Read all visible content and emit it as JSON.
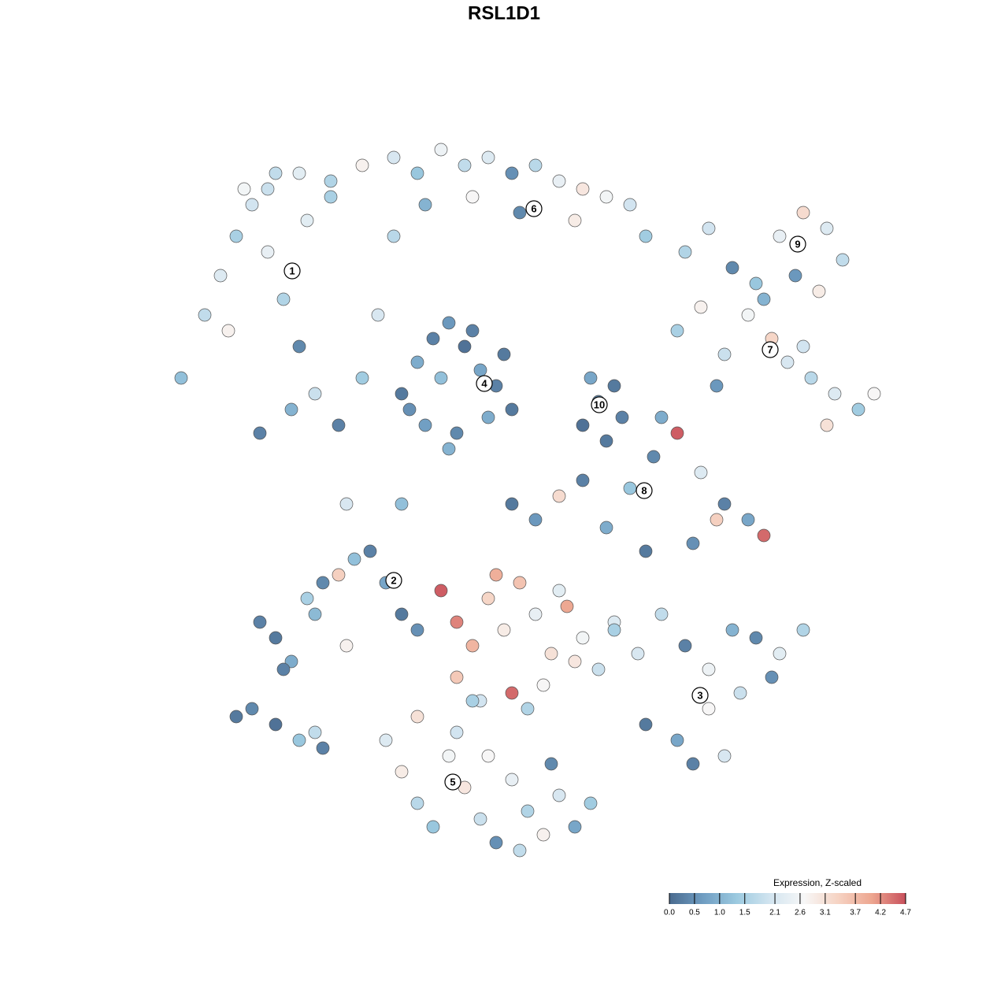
{
  "chart_data": {
    "type": "scatter",
    "title": "RSL1D1",
    "colorbar_title": "Expression, Z-scaled",
    "xlim": [
      0,
      100
    ],
    "ylim": [
      0,
      100
    ],
    "clim": [
      0,
      4.7
    ],
    "colormap": [
      "#4a6b8f",
      "#6f9dc2",
      "#9ccae0",
      "#d3e5f0",
      "#f7f7f7",
      "#f6d3c3",
      "#eda690",
      "#c8505c"
    ],
    "cticks": [
      {
        "value": 0,
        "label": "0.0"
      },
      0.5,
      {
        "value": 1,
        "label": "1.0"
      },
      1.5,
      2.1,
      2.6,
      3.1,
      3.7,
      4.2,
      4.7
    ],
    "x": [
      5,
      8,
      10,
      12,
      14,
      16,
      18,
      20,
      22,
      25,
      28,
      30,
      32,
      13,
      17,
      21,
      15,
      24,
      19,
      11,
      16,
      20,
      24,
      28,
      32,
      35,
      38,
      41,
      44,
      47,
      50,
      53,
      56,
      59,
      62,
      64,
      36,
      42,
      48,
      55,
      33,
      35,
      37,
      39,
      41,
      43,
      45,
      47,
      36,
      40,
      44,
      38,
      42,
      34,
      46,
      39,
      56,
      58,
      60,
      57,
      61,
      59,
      69,
      72,
      75,
      78,
      81,
      84,
      87,
      89,
      83,
      86,
      68,
      71,
      74,
      77,
      80,
      82,
      85,
      88,
      91,
      93,
      79,
      84,
      73,
      87,
      47,
      50,
      53,
      56,
      59,
      62,
      65,
      68,
      71,
      74,
      77,
      79,
      64,
      70,
      73,
      66,
      15,
      17,
      19,
      21,
      23,
      25,
      27,
      29,
      31,
      33,
      35,
      18,
      22,
      26,
      38,
      40,
      42,
      44,
      46,
      48,
      50,
      52,
      54,
      56,
      58,
      60,
      40,
      43,
      47,
      51,
      55,
      45,
      49,
      53,
      60,
      63,
      66,
      69,
      72,
      75,
      78,
      81,
      84,
      64,
      68,
      72,
      76,
      80,
      70,
      74,
      31,
      33,
      35,
      37,
      39,
      41,
      43,
      45,
      47,
      49,
      51,
      53,
      55,
      57,
      35,
      40,
      44,
      48,
      52,
      42,
      12,
      14,
      17,
      20,
      22,
      23,
      26,
      33
    ],
    "y": [
      62,
      70,
      75,
      80,
      84,
      78,
      72,
      66,
      60,
      56,
      62,
      70,
      80,
      86,
      88,
      82,
      55,
      85,
      58,
      68,
      86,
      88,
      87,
      89,
      90,
      88,
      91,
      89,
      90,
      88,
      89,
      87,
      86,
      85,
      84,
      80,
      84,
      85,
      83,
      82,
      60,
      64,
      67,
      69,
      66,
      63,
      61,
      58,
      56,
      55,
      57,
      62,
      68,
      58,
      65,
      53,
      56,
      59,
      61,
      62,
      57,
      54,
      78,
      81,
      76,
      74,
      80,
      83,
      81,
      77,
      75,
      73,
      68,
      71,
      65,
      70,
      67,
      64,
      62,
      60,
      58,
      60,
      72,
      66,
      61,
      56,
      46,
      44,
      47,
      49,
      43,
      48,
      52,
      55,
      50,
      46,
      44,
      42,
      40,
      41,
      44,
      57,
      31,
      29,
      26,
      34,
      36,
      37,
      39,
      40,
      36,
      32,
      30,
      25,
      32,
      28,
      35,
      31,
      28,
      34,
      30,
      36,
      32,
      27,
      33,
      29,
      25,
      31,
      24,
      21,
      22,
      23,
      26,
      37,
      20,
      35,
      30,
      27,
      32,
      28,
      25,
      30,
      29,
      27,
      30,
      18,
      16,
      20,
      22,
      24,
      13,
      14,
      16,
      12,
      8,
      5,
      14,
      10,
      6,
      3,
      11,
      7,
      4,
      9,
      5,
      8,
      19,
      17,
      14,
      2,
      13,
      21,
      19,
      20,
      18,
      16,
      17,
      15,
      46,
      46
    ],
    "values": [
      1.2,
      1.8,
      2.2,
      1.5,
      2.0,
      2.4,
      1.6,
      0.4,
      1.9,
      0.3,
      1.4,
      2.1,
      1.7,
      2.6,
      1.8,
      2.3,
      0.3,
      1.5,
      1.0,
      2.8,
      1.9,
      2.3,
      1.6,
      2.8,
      2.1,
      1.3,
      2.5,
      1.8,
      2.2,
      0.5,
      1.7,
      2.4,
      3.0,
      2.6,
      2.0,
      1.4,
      1.0,
      2.7,
      0.4,
      2.9,
      0.2,
      0.9,
      0.3,
      0.6,
      0.1,
      0.8,
      0.3,
      0.2,
      0.7,
      0.4,
      0.9,
      1.2,
      0.3,
      0.5,
      0.2,
      1.0,
      0.1,
      0.4,
      0.2,
      0.8,
      0.3,
      0.2,
      1.6,
      2.0,
      0.4,
      1.3,
      2.4,
      3.2,
      2.2,
      1.8,
      0.6,
      2.9,
      1.5,
      2.8,
      1.9,
      2.6,
      3.3,
      2.1,
      1.7,
      2.2,
      1.4,
      2.7,
      1.0,
      2.0,
      0.6,
      3.1,
      0.2,
      0.6,
      3.2,
      0.3,
      0.9,
      1.3,
      0.4,
      4.6,
      2.2,
      0.3,
      0.8,
      4.5,
      0.2,
      0.5,
      3.4,
      0.9,
      0.3,
      0.2,
      0.9,
      1.5,
      0.4,
      3.4,
      1.2,
      0.3,
      0.8,
      0.2,
      0.5,
      0.3,
      1.1,
      2.8,
      4.6,
      4.3,
      3.8,
      3.3,
      2.9,
      3.6,
      2.4,
      3.1,
      4.0,
      2.6,
      1.9,
      2.2,
      3.5,
      2.0,
      4.5,
      2.7,
      3.0,
      3.9,
      1.6,
      2.3,
      1.5,
      2.1,
      1.8,
      0.3,
      2.5,
      1.0,
      0.4,
      2.3,
      1.6,
      0.2,
      0.8,
      2.7,
      1.9,
      0.5,
      0.3,
      2.1,
      2.2,
      2.9,
      1.7,
      1.3,
      2.6,
      3.0,
      1.9,
      0.5,
      2.4,
      1.6,
      2.8,
      2.1,
      0.8,
      1.4,
      3.1,
      2.0,
      2.7,
      1.8,
      0.4,
      1.5,
      0.2,
      0.4,
      0.1,
      1.3,
      1.8,
      0.3,
      2.1,
      1.2
    ],
    "clusters": [
      {
        "label": "1",
        "x": 19.1,
        "y": 75.6
      },
      {
        "label": "2",
        "x": 32,
        "y": 36.3
      },
      {
        "label": "3",
        "x": 70.9,
        "y": 21.7
      },
      {
        "label": "4",
        "x": 43.5,
        "y": 61.3
      },
      {
        "label": "5",
        "x": 39.5,
        "y": 10.7
      },
      {
        "label": "6",
        "x": 49.8,
        "y": 83.5
      },
      {
        "label": "7",
        "x": 79.8,
        "y": 65.6
      },
      {
        "label": "8",
        "x": 63.8,
        "y": 47.7
      },
      {
        "label": "9",
        "x": 83.3,
        "y": 79
      },
      {
        "label": "10",
        "x": 58.1,
        "y": 58.6
      }
    ]
  }
}
